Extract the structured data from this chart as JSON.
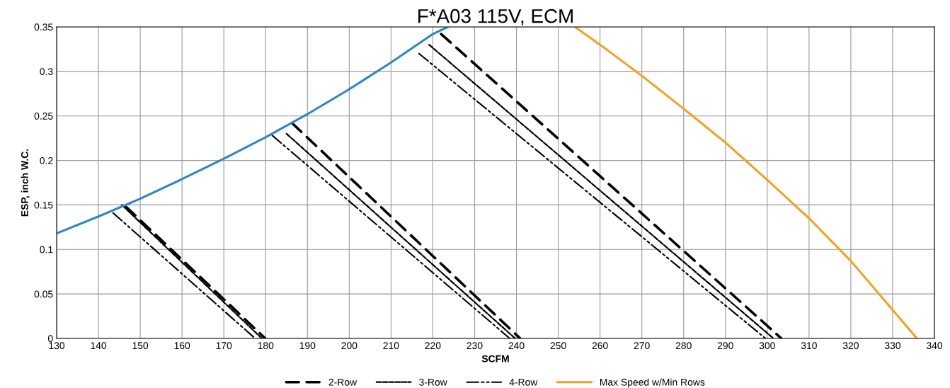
{
  "chart_data": {
    "type": "line",
    "title": "F*A03 115V, ECM",
    "xlabel": "SCFM",
    "ylabel": "ESP, inch W.C.",
    "xlim": [
      130,
      340
    ],
    "xticks": [
      130,
      140,
      150,
      160,
      170,
      180,
      190,
      200,
      210,
      220,
      230,
      240,
      250,
      260,
      270,
      280,
      290,
      300,
      310,
      320,
      330,
      340
    ],
    "ylim": [
      0,
      0.35
    ],
    "yticks": [
      0,
      0.05,
      0.1,
      0.15,
      0.2,
      0.25,
      0.3,
      0.35
    ],
    "grid": true,
    "legend": "bottom",
    "marker": "none",
    "series": [
      {
        "name": "2-Row",
        "color": "#000000",
        "line_style": "dashed",
        "x": [
          146.6,
          179.9
        ],
        "values": [
          0.148,
          0
        ]
      },
      {
        "name": "3-Row",
        "color": "#000000",
        "line_style": "dotted",
        "x": [
          145.6,
          179.1
        ],
        "values": [
          0.15,
          0
        ]
      },
      {
        "name": "4-Row",
        "color": "#000000",
        "line_style": "dashdotdot",
        "x": [
          143.5,
          177.5
        ],
        "values": [
          0.141,
          0
        ]
      },
      {
        "name": "Max Speed w/Min Rows",
        "color": "#f4a024",
        "line_style": "solid",
        "x": [
          254,
          260,
          270,
          280,
          290,
          300,
          310,
          320,
          330,
          335.8
        ],
        "values": [
          0.35,
          0.33,
          0.295,
          0.258,
          0.22,
          0.178,
          0.135,
          0.087,
          0.032,
          0
        ]
      },
      {
        "color": "#000000",
        "line_style": "dashed",
        "x": [
          186.3,
          240.9
        ],
        "values": [
          0.242,
          0
        ]
      },
      {
        "color": "#000000",
        "line_style": "dotted",
        "x": [
          185.0,
          239.7
        ],
        "values": [
          0.23,
          0
        ]
      },
      {
        "color": "#000000",
        "line_style": "dashdotdot",
        "x": [
          181.6,
          238.4
        ],
        "values": [
          0.228,
          0
        ]
      },
      {
        "color": "#000000",
        "line_style": "dashed",
        "x": [
          222.0,
          303.4
        ],
        "values": [
          0.342,
          0
        ]
      },
      {
        "color": "#000000",
        "line_style": "dotted",
        "x": [
          219.1,
          301.5
        ],
        "values": [
          0.33,
          0
        ]
      },
      {
        "color": "#000000",
        "line_style": "dashdotdot",
        "x": [
          216.7,
          299.6
        ],
        "values": [
          0.32,
          0
        ]
      },
      {
        "color": "#2e86c8",
        "line_style": "solid",
        "x": [
          130,
          140,
          150,
          160,
          170,
          180,
          190,
          200,
          210,
          220,
          223.6
        ],
        "values": [
          0.118,
          0.137,
          0.157,
          0.179,
          0.202,
          0.226,
          0.252,
          0.28,
          0.31,
          0.342,
          0.35
        ]
      }
    ]
  }
}
